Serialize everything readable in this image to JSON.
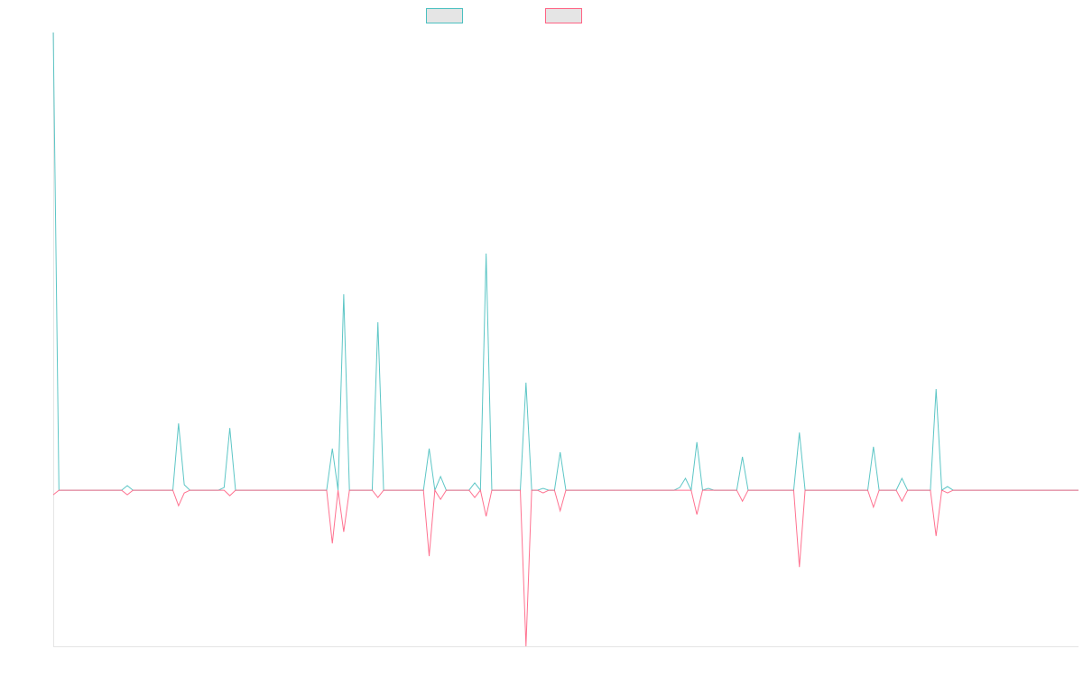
{
  "chart_data": {
    "type": "line",
    "title": "",
    "xlabel": "",
    "ylabel": "",
    "n_points": 181,
    "x_start": 0,
    "default_value": 0,
    "ylim": [
      -34.1,
      100
    ],
    "grid": false,
    "legend_position": "top",
    "series": [
      {
        "name": "",
        "color": "#4bc0c0",
        "nonzero_points": [
          [
            0,
            100
          ],
          [
            13,
            1
          ],
          [
            22,
            14.6
          ],
          [
            23,
            1.2
          ],
          [
            30,
            0.6
          ],
          [
            31,
            13.6
          ],
          [
            49,
            9.1
          ],
          [
            51,
            42.8
          ],
          [
            57,
            36.7
          ],
          [
            66,
            9.1
          ],
          [
            68,
            3
          ],
          [
            74,
            1.6
          ],
          [
            76,
            51.7
          ],
          [
            83,
            23.5
          ],
          [
            86,
            0.4
          ],
          [
            89,
            8.3
          ],
          [
            110,
            0.6
          ],
          [
            111,
            2.6
          ],
          [
            113,
            10.5
          ],
          [
            115,
            0.4
          ],
          [
            121,
            7.3
          ],
          [
            131,
            12.6
          ],
          [
            144,
            9.5
          ],
          [
            149,
            2.6
          ],
          [
            155,
            22.1
          ],
          [
            157,
            0.8
          ]
        ]
      },
      {
        "name": "",
        "color": "#ff6384",
        "nonzero_points": [
          [
            0,
            -1
          ],
          [
            13,
            -1
          ],
          [
            22,
            -3.4
          ],
          [
            23,
            -0.6
          ],
          [
            31,
            -1.2
          ],
          [
            49,
            -11.6
          ],
          [
            51,
            -9.1
          ],
          [
            57,
            -1.6
          ],
          [
            66,
            -14.4
          ],
          [
            68,
            -2
          ],
          [
            74,
            -1.6
          ],
          [
            76,
            -5.7
          ],
          [
            83,
            -34.1
          ],
          [
            86,
            -0.6
          ],
          [
            89,
            -4.5
          ],
          [
            113,
            -5.3
          ],
          [
            121,
            -2.4
          ],
          [
            131,
            -16.8
          ],
          [
            144,
            -3.7
          ],
          [
            149,
            -2.4
          ],
          [
            155,
            -10
          ],
          [
            157,
            -0.6
          ]
        ]
      }
    ]
  }
}
